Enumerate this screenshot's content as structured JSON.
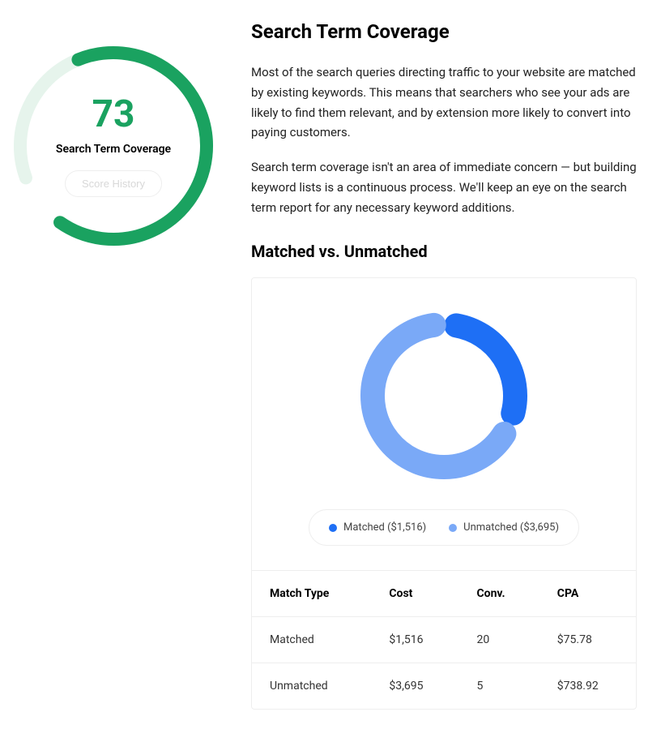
{
  "score_gauge": {
    "value": "73",
    "value_numeric": 73,
    "max": 100,
    "label": "Search Term Coverage",
    "history_button": "Score History",
    "ring_color": "#1aa260",
    "ring_track_color": "#e6f4ec",
    "value_color": "#1aa260",
    "label_color": "#000000",
    "history_btn_text_color": "#d8d8d8",
    "ring_stroke_width": 16,
    "gap_deg": 35,
    "start_angle_deg": -110
  },
  "main": {
    "title": "Search Term Coverage",
    "paragraph_1": "Most of the search queries directing traffic to your website are matched by existing keywords. This means that searchers who see your ads are likely to find them relevant, and by extension more likely to convert into paying customers.",
    "paragraph_2": "Search term coverage isn't an area of immediate concern — but building keyword lists is a continuous process. We'll keep an eye on the search term report for any necessary keyword additions.",
    "subheading": "Matched vs. Unmatched"
  },
  "donut_chart": {
    "type": "donut",
    "series": [
      {
        "key": "matched",
        "label": "Matched ($1,516)",
        "value": 1516,
        "color": "#1e6ff5"
      },
      {
        "key": "unmatched",
        "label": "Unmatched ($3,695)",
        "value": 3695,
        "color": "#7aa9f7"
      }
    ],
    "stroke_width": 30,
    "gap_deg": 18,
    "background_color": "#ffffff",
    "border_color": "#eeeeee",
    "legend_fontsize": 13
  },
  "table": {
    "columns": [
      "Match Type",
      "Cost",
      "Conv.",
      "CPA"
    ],
    "rows": [
      [
        "Matched",
        "$1,516",
        "20",
        "$75.78"
      ],
      [
        "Unmatched",
        "$3,695",
        "5",
        "$738.92"
      ]
    ],
    "header_fontsize": 14,
    "cell_fontsize": 14,
    "border_color": "#eeeeee"
  }
}
